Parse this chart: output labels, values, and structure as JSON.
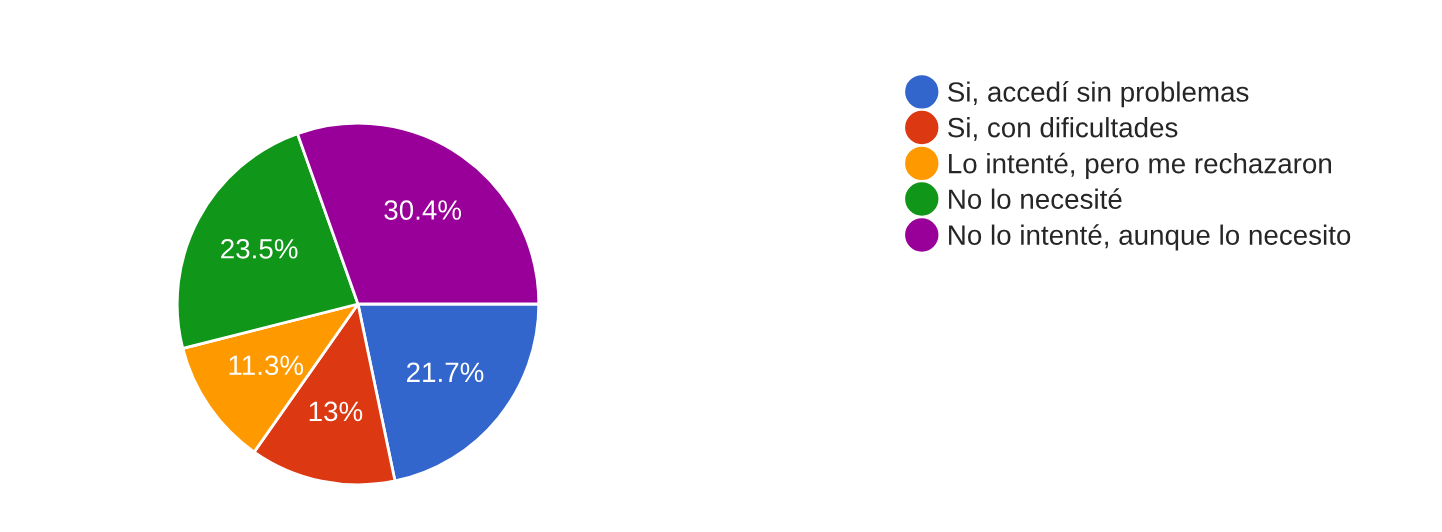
{
  "chart_data": {
    "type": "pie",
    "categories": [
      "Si, accedí sin problemas",
      "Si, con dificultades",
      "Lo intenté, pero me rechazaron",
      "No lo necesité",
      "No lo intenté, aunque lo necesito"
    ],
    "values": [
      21.7,
      13,
      11.3,
      23.5,
      30.4
    ],
    "value_labels": [
      "21.7%",
      "13%",
      "11.3%",
      "23.5%",
      "30.4%"
    ],
    "colors": [
      "#3366cc",
      "#dc3912",
      "#ff9900",
      "#109618",
      "#990099"
    ],
    "legend": "right"
  }
}
